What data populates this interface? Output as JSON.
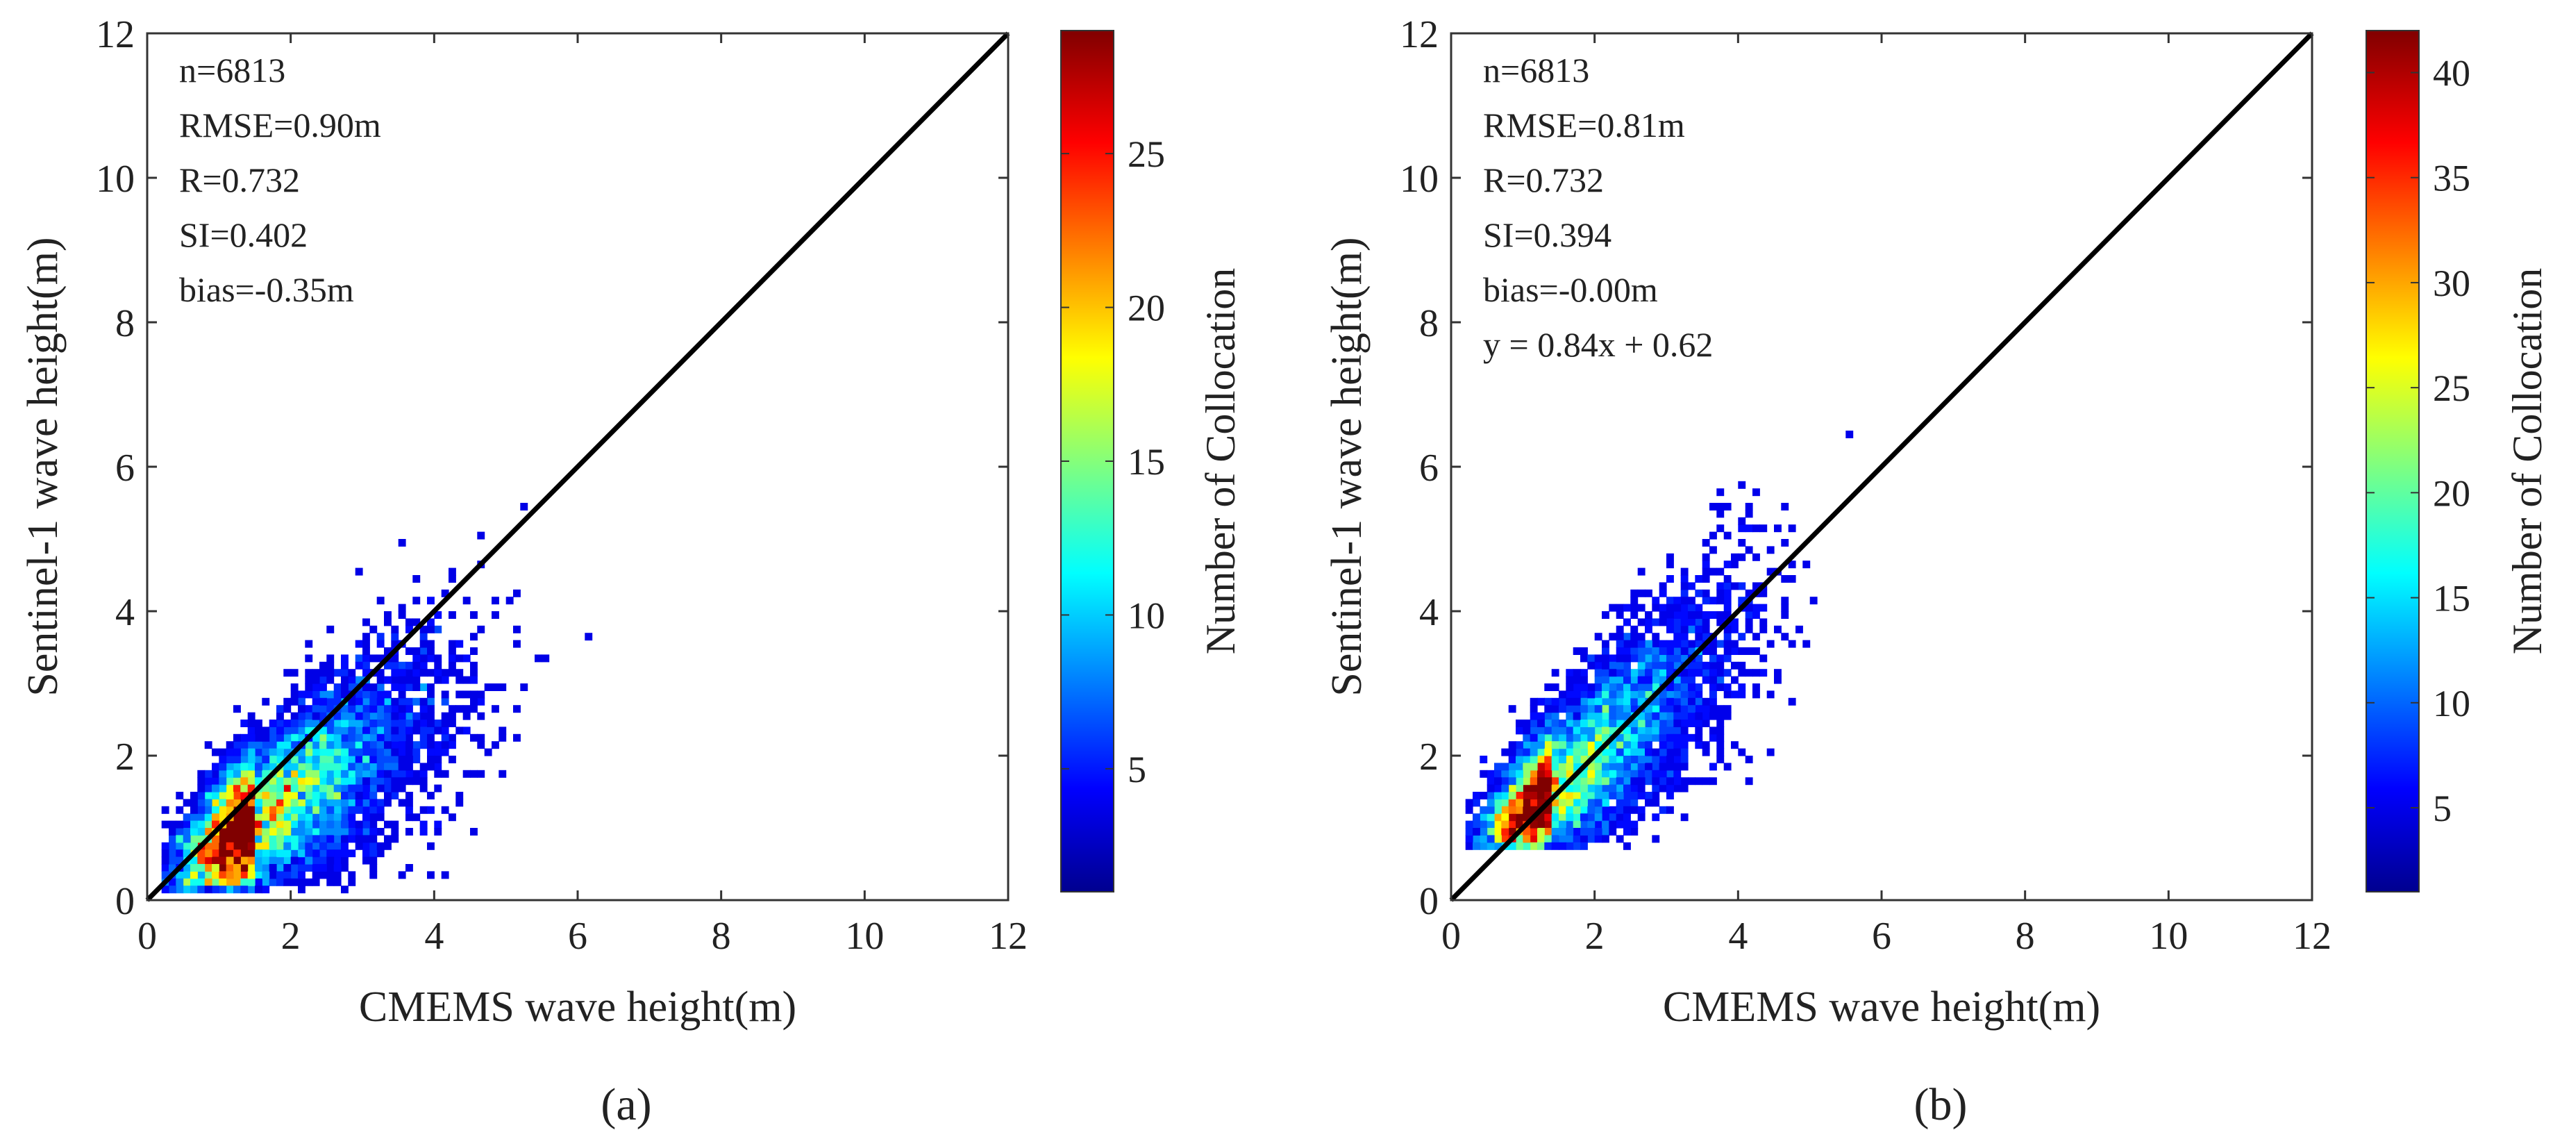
{
  "panels": [
    {
      "label": "(a)",
      "stats": [
        "n=6813",
        "RMSE=0.90m",
        "R=0.732",
        "SI=0.402",
        "bias=-0.35m"
      ]
    },
    {
      "label": "(b)",
      "stats": [
        "n=6813",
        "RMSE=0.81m",
        "R=0.732",
        "SI=0.394",
        "bias=-0.00m",
        "y = 0.84x + 0.62"
      ]
    }
  ],
  "chart_data": [
    {
      "type": "heatmap",
      "xlabel": "CMEMS wave height(m)",
      "ylabel": "Sentinel-1 wave height(m)",
      "xlim": [
        0,
        12
      ],
      "ylim": [
        0,
        12
      ],
      "xticks": [
        0,
        2,
        4,
        6,
        8,
        10,
        12
      ],
      "yticks": [
        0,
        2,
        4,
        6,
        8,
        10,
        12
      ],
      "reference_line": {
        "type": "1:1",
        "from": [
          0,
          0
        ],
        "to": [
          12,
          12
        ]
      },
      "density_center": [
        1.5,
        1.1
      ],
      "colorbar": {
        "label": "Number of Collocation",
        "range": [
          1,
          29
        ],
        "ticks": [
          5,
          10,
          15,
          20,
          25
        ],
        "colormap": "jet"
      },
      "grid": false,
      "legend": "none"
    },
    {
      "type": "heatmap",
      "xlabel": "CMEMS wave height(m)",
      "ylabel": "Sentinel-1 wave height(m)",
      "xlim": [
        0,
        12
      ],
      "ylim": [
        0,
        12
      ],
      "xticks": [
        0,
        2,
        4,
        6,
        8,
        10,
        12
      ],
      "yticks": [
        0,
        2,
        4,
        6,
        8,
        10,
        12
      ],
      "reference_line": {
        "type": "1:1",
        "from": [
          0,
          0
        ],
        "to": [
          12,
          12
        ]
      },
      "density_center": [
        1.4,
        1.5
      ],
      "colorbar": {
        "label": "Number of Collocation",
        "range": [
          1,
          42
        ],
        "ticks": [
          5,
          10,
          15,
          20,
          25,
          30,
          35,
          40
        ],
        "colormap": "jet"
      },
      "grid": false,
      "legend": "none"
    }
  ]
}
